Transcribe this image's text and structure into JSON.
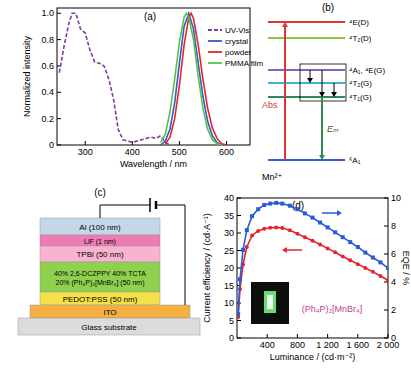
{
  "chart_data": [
    {
      "type": "line",
      "title": "(a)",
      "x_label": "Wavelength / nm",
      "y_label": "Normalized intensity",
      "xlim": [
        240,
        650
      ],
      "ylim": [
        0,
        1.04
      ],
      "xticks": [
        300,
        400,
        500,
        600
      ],
      "yticks": [
        0,
        0.2,
        0.4,
        0.6,
        0.8,
        {
          "value": 1,
          "label": "1.0"
        }
      ],
      "legend": "upper right",
      "series": [
        {
          "name": "UV-Vis",
          "color": "#7b3fa0",
          "line_style": "dashed",
          "x": [
            245,
            255,
            265,
            272,
            280,
            290,
            300,
            310,
            320,
            330,
            340,
            350,
            360,
            370,
            380,
            400,
            420,
            440,
            450,
            460,
            470,
            480
          ],
          "values": [
            0.55,
            0.75,
            0.92,
            1.0,
            1.0,
            0.88,
            0.85,
            0.72,
            0.63,
            0.62,
            0.6,
            0.5,
            0.35,
            0.12,
            0.04,
            0.02,
            0.04,
            0.06,
            0.05,
            0.07,
            0.02,
            0.0
          ]
        },
        {
          "name": "crystal",
          "color": "#2f5fc4",
          "line_style": "solid",
          "x": [
            460,
            470,
            480,
            490,
            500,
            510,
            520,
            530,
            540,
            550,
            560,
            570,
            580,
            590
          ],
          "values": [
            0,
            0.03,
            0.12,
            0.32,
            0.62,
            0.9,
            1.0,
            0.88,
            0.62,
            0.37,
            0.18,
            0.07,
            0.02,
            0
          ]
        },
        {
          "name": "powder",
          "color": "#e3262d",
          "line_style": "solid",
          "x": [
            470,
            480,
            490,
            500,
            510,
            520,
            525,
            530,
            540,
            550,
            560,
            570,
            580,
            590,
            600
          ],
          "values": [
            0.01,
            0.06,
            0.2,
            0.45,
            0.76,
            0.97,
            1.0,
            0.96,
            0.76,
            0.5,
            0.28,
            0.13,
            0.05,
            0.01,
            0
          ]
        },
        {
          "name": "PMMA film",
          "color": "#5cbf4a",
          "line_style": "solid",
          "x": [
            460,
            470,
            480,
            490,
            500,
            510,
            515,
            520,
            530,
            540,
            550,
            560,
            570,
            580,
            590
          ],
          "values": [
            0.02,
            0.08,
            0.25,
            0.5,
            0.78,
            0.97,
            1.0,
            0.97,
            0.8,
            0.52,
            0.28,
            0.12,
            0.04,
            0.01,
            0
          ]
        }
      ]
    },
    {
      "type": "line",
      "title": "(d)",
      "x_label": "Luminance / (cd·m⁻²)",
      "y_label": "Current efficiency / (cd·A⁻¹)",
      "y2_label": "EQE / %",
      "xlim": [
        0,
        2000
      ],
      "ylim": [
        0,
        40
      ],
      "y2lim": [
        0,
        10
      ],
      "xticks": [
        400,
        800,
        {
          "value": 1200,
          "label": "1 200"
        },
        {
          "value": 1600,
          "label": "1 600"
        },
        {
          "value": 2000,
          "label": "2 000"
        }
      ],
      "yticks": [
        0,
        5,
        10,
        15,
        20,
        25,
        30,
        35,
        40
      ],
      "y2ticks": [
        0,
        2,
        4,
        6,
        8,
        10
      ],
      "annotations": [
        "(Ph₄P)₂[MnBr₄]"
      ],
      "series": [
        {
          "color": "#e3262d",
          "marker": "circle",
          "x": [
            15,
            40,
            80,
            130,
            200,
            280,
            360,
            440,
            520,
            600,
            700,
            800,
            900,
            1000,
            1100,
            1200,
            1300,
            1400,
            1500,
            1600,
            1700,
            1800,
            1900,
            2000
          ],
          "values": [
            6,
            14,
            21,
            26,
            29.3,
            30.6,
            31.2,
            31.5,
            31.6,
            31.4,
            30.8,
            29.8,
            28.8,
            27.8,
            26.7,
            25.6,
            24.5,
            23.3,
            22.2,
            21.1,
            20,
            18.9,
            17.7,
            16.5
          ]
        },
        {
          "color": "#2a5ad8",
          "marker": "square",
          "axis": "y2",
          "x": [
            15,
            40,
            80,
            130,
            200,
            280,
            360,
            440,
            520,
            600,
            700,
            800,
            900,
            1000,
            1100,
            1200,
            1300,
            1400,
            1500,
            1600,
            1700,
            1800,
            1900,
            2000
          ],
          "values": [
            1.7,
            4.2,
            6.3,
            7.7,
            8.7,
            9.2,
            9.5,
            9.6,
            9.65,
            9.6,
            9.45,
            9.2,
            8.9,
            8.6,
            8.25,
            7.9,
            7.55,
            7.2,
            6.85,
            6.5,
            6.1,
            5.75,
            5.4,
            5.0
          ]
        }
      ]
    }
  ],
  "diagram_b": {
    "label": "(b)",
    "levels": [
      {
        "label": "⁴E(D)",
        "color": "#d9382f"
      },
      {
        "label": "⁴T₂(D)",
        "color": "#8cc63f"
      },
      {
        "label": "⁴A₁, ⁴E(G)",
        "color": "#8a63b8"
      },
      {
        "label": "⁴T₂(G)",
        "color": "#3bb3d9"
      },
      {
        "label": "⁴T₁(G)",
        "color": "#2e8b57"
      },
      {
        "label": "⁶A₁",
        "color": "#3a5fcd"
      }
    ],
    "absorption": "Abs",
    "emission": "Eₘ",
    "ion": "Mn²⁺"
  },
  "diagram_c": {
    "label": "(c)",
    "layers": [
      {
        "lines": [
          "Al (100 nm)"
        ],
        "color": "#c5d6e8"
      },
      {
        "lines": [
          "LiF (1 nm)"
        ],
        "color": "#f07ab4"
      },
      {
        "lines": [
          "TPBi (50 nm)"
        ],
        "color": "#f9b3cf"
      },
      {
        "lines": [
          "40% 2,6-DCZPPY 40% TCTA",
          "20% (Ph₄P)₂[MnBr₄] (50 nm)"
        ],
        "color": "#8fd14f"
      },
      {
        "lines": [
          "PEDOT:PSS (50 nm)"
        ],
        "color": "#f5e24a"
      },
      {
        "lines": [
          "ITO"
        ],
        "color": "#f5b041"
      },
      {
        "lines": [
          "Glass substrate"
        ],
        "color": "#dcdcdc"
      }
    ]
  }
}
